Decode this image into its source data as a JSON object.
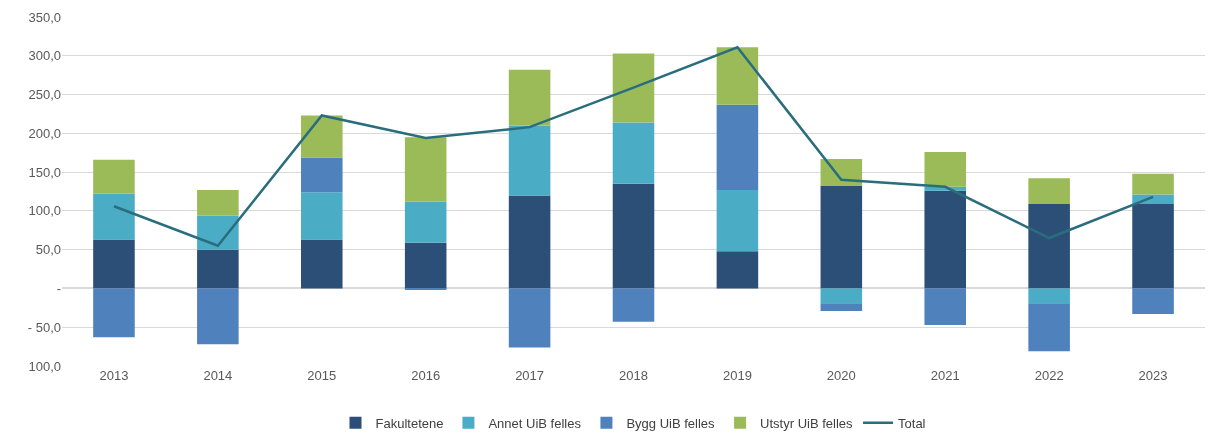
{
  "chart_data": {
    "type": "bar",
    "stacked": true,
    "categories": [
      "2013",
      "2014",
      "2015",
      "2016",
      "2017",
      "2018",
      "2019",
      "2020",
      "2021",
      "2022",
      "2023"
    ],
    "series": [
      {
        "name": "Fakultetene",
        "color": "#2c4f77",
        "values": [
          63,
          50,
          63,
          59,
          120,
          135,
          48,
          132,
          126,
          109,
          109
        ]
      },
      {
        "name": "Annet UiB felles",
        "color": "#4bacc6",
        "values": [
          59,
          44,
          61,
          53,
          90,
          79,
          79,
          -19,
          5,
          -19,
          12
        ]
      },
      {
        "name": "Bygg UiB felles",
        "color": "#4f81bd",
        "values": [
          -63,
          -72,
          45,
          -2,
          -76,
          -43,
          110,
          -10,
          -47,
          -62,
          -33
        ]
      },
      {
        "name": "Utstyr UiB felles",
        "color": "#9bbb59",
        "values": [
          44,
          33,
          54,
          83,
          72,
          89,
          74,
          35,
          45,
          33,
          27
        ]
      },
      {
        "name": "Total",
        "type": "line",
        "color": "#2a6e7e",
        "values": [
          106,
          55,
          223,
          194,
          208,
          259,
          311,
          140,
          131,
          65,
          118
        ]
      }
    ],
    "ylim": [
      -100,
      350
    ],
    "yticks": [
      {
        "value": 350,
        "label": "350,0"
      },
      {
        "value": 300,
        "label": "300,0"
      },
      {
        "value": 250,
        "label": "250,0"
      },
      {
        "value": 200,
        "label": "200,0"
      },
      {
        "value": 150,
        "label": "150,0"
      },
      {
        "value": 100,
        "label": "100,0"
      },
      {
        "value": 50,
        "label": "50,0"
      },
      {
        "value": 0,
        "label": "-"
      },
      {
        "value": -50,
        "label": "- 50,0"
      },
      {
        "value": -100,
        "label": "100,0"
      }
    ],
    "grid": "y",
    "legend": "bottom",
    "marker": "none",
    "line_style": "solid"
  }
}
